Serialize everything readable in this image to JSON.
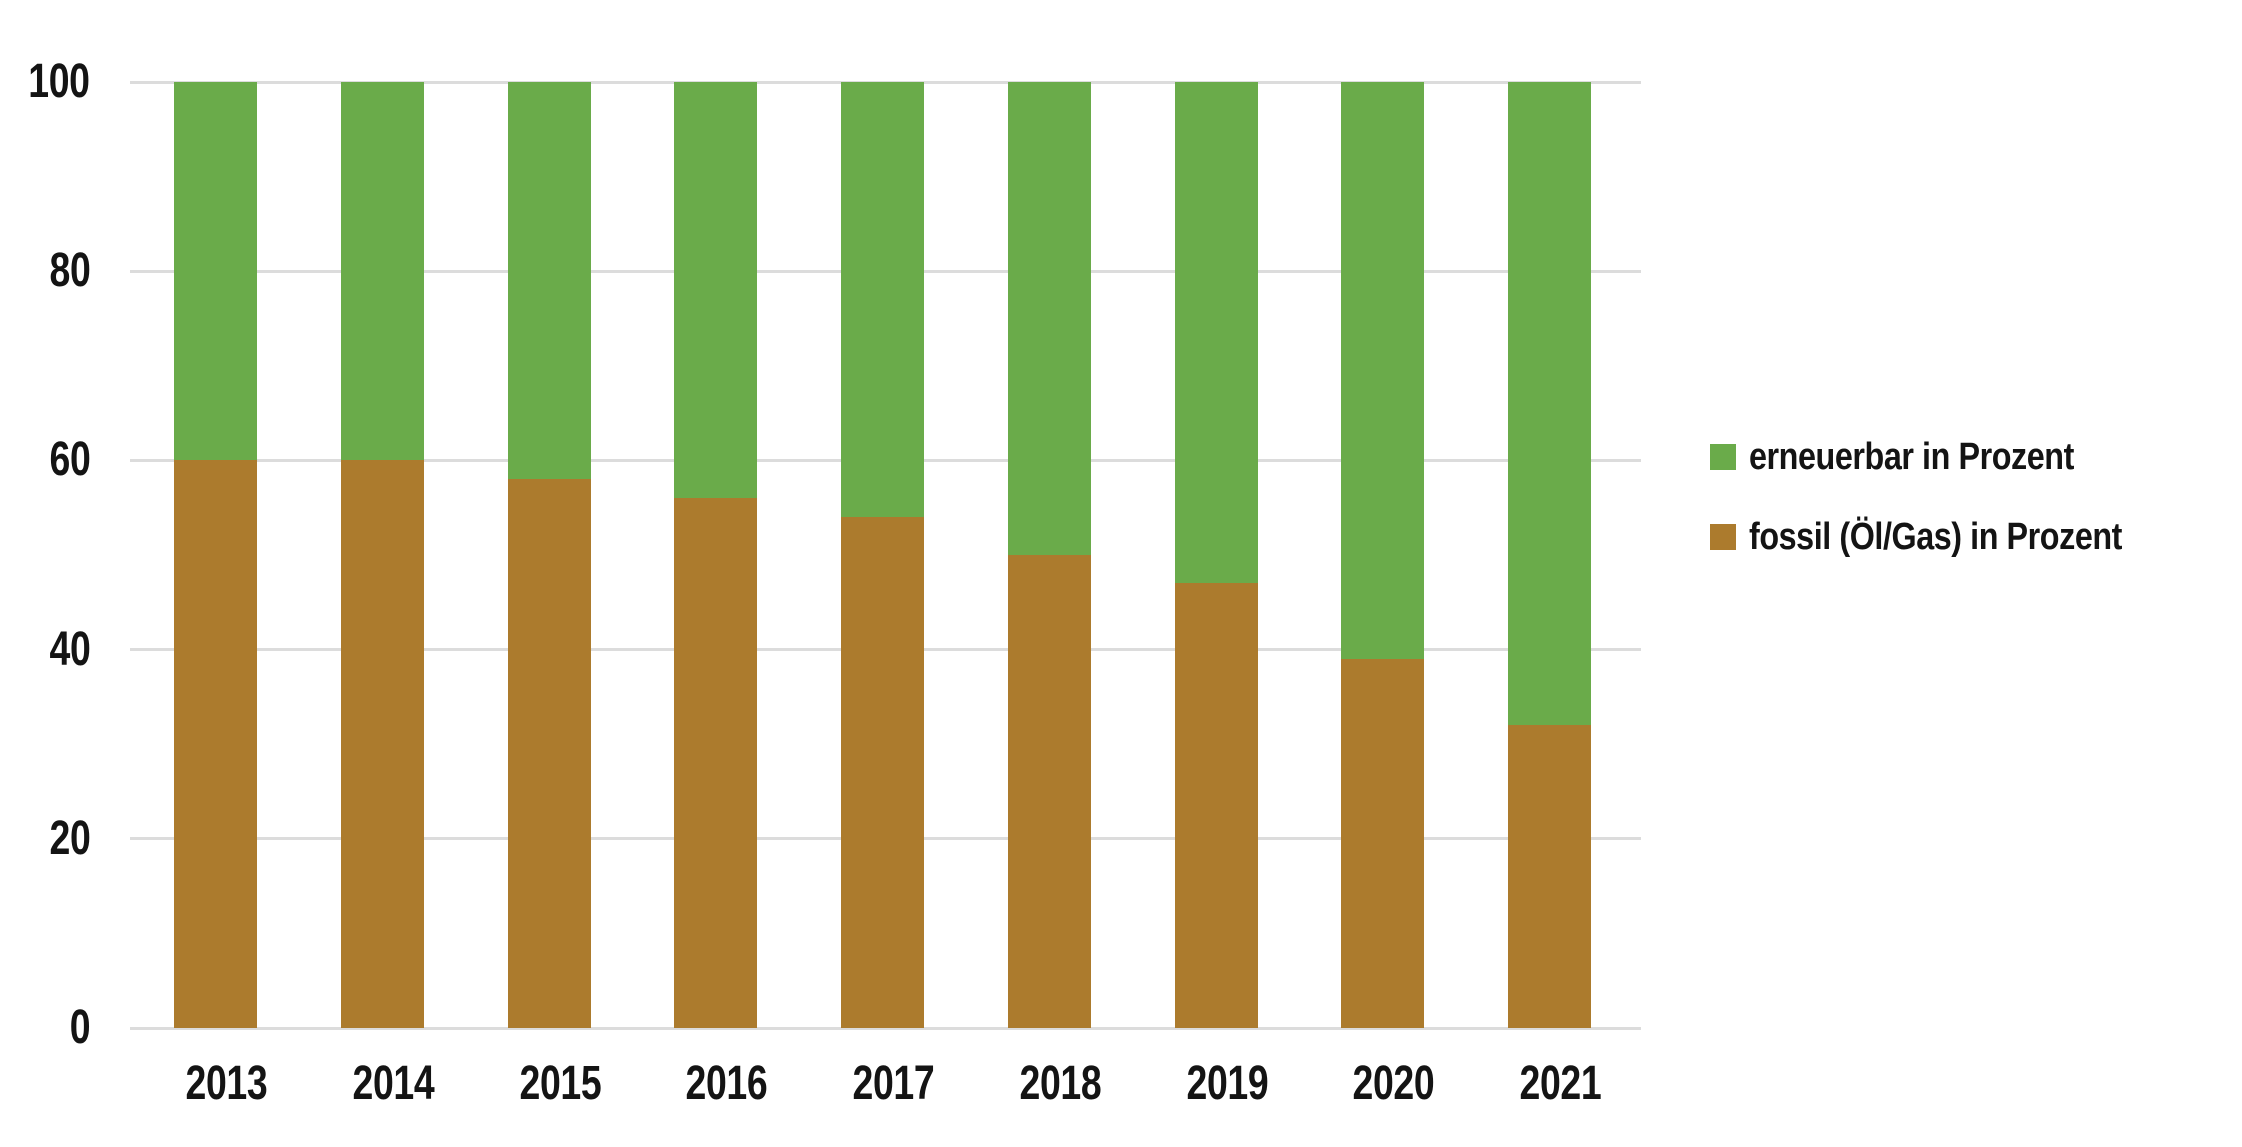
{
  "chart_data": {
    "type": "bar",
    "stacked": true,
    "categories": [
      "2013",
      "2014",
      "2015",
      "2016",
      "2017",
      "2018",
      "2019",
      "2020",
      "2021"
    ],
    "series": [
      {
        "name": "erneuerbar in Prozent",
        "color": "#6aab4a",
        "values": [
          40,
          40,
          42,
          44,
          46,
          50,
          53,
          61,
          68
        ]
      },
      {
        "name": "fossil (Öl/Gas) in Prozent",
        "color": "#ac7b2d",
        "values": [
          60,
          60,
          58,
          56,
          54,
          50,
          47,
          39,
          32
        ]
      }
    ],
    "ylim": [
      0,
      100
    ],
    "yticks": [
      0,
      20,
      40,
      60,
      80,
      100
    ],
    "grid": true,
    "gridline_color": "#dcdcdc",
    "legend_position": "right",
    "background": "#ffffff",
    "text_color": "#141414"
  }
}
